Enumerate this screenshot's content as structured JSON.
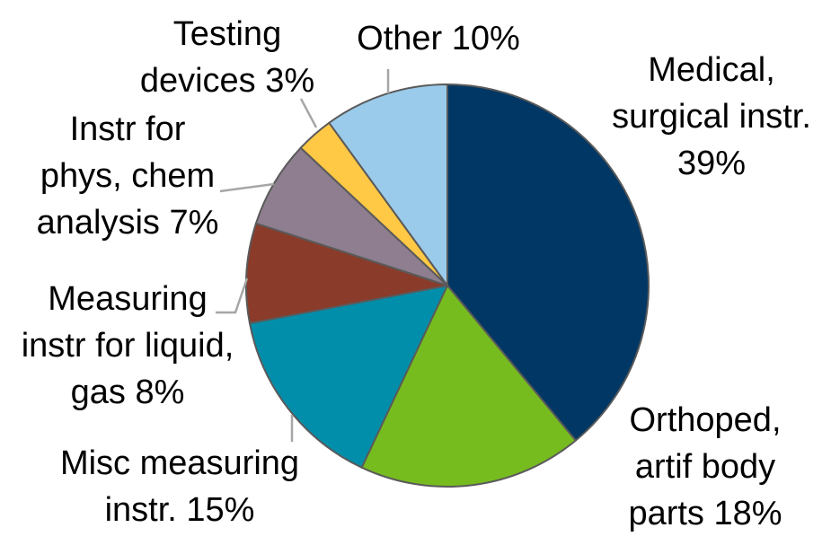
{
  "chart_data": {
    "type": "pie",
    "start_angle_deg": 0,
    "direction": "clockwise",
    "slices": [
      {
        "label": "Medical, surgical instr. 39%",
        "value": 39,
        "color": "#003764"
      },
      {
        "label": "Orthoped, artif body parts 18%",
        "value": 18,
        "color": "#77BC1F"
      },
      {
        "label": "Misc measuring instr. 15%",
        "value": 15,
        "color": "#008EAA"
      },
      {
        "label": "Measuring instr for liquid, gas 8%",
        "value": 8,
        "color": "#8A3B2A"
      },
      {
        "label": "Instr for phys, chem analysis 7%",
        "value": 7,
        "color": "#8E7E8F"
      },
      {
        "label": "Testing devices 3%",
        "value": 3,
        "color": "#FFC845"
      },
      {
        "label": "Other 10%",
        "value": 10,
        "color": "#9BCBEB"
      }
    ]
  }
}
